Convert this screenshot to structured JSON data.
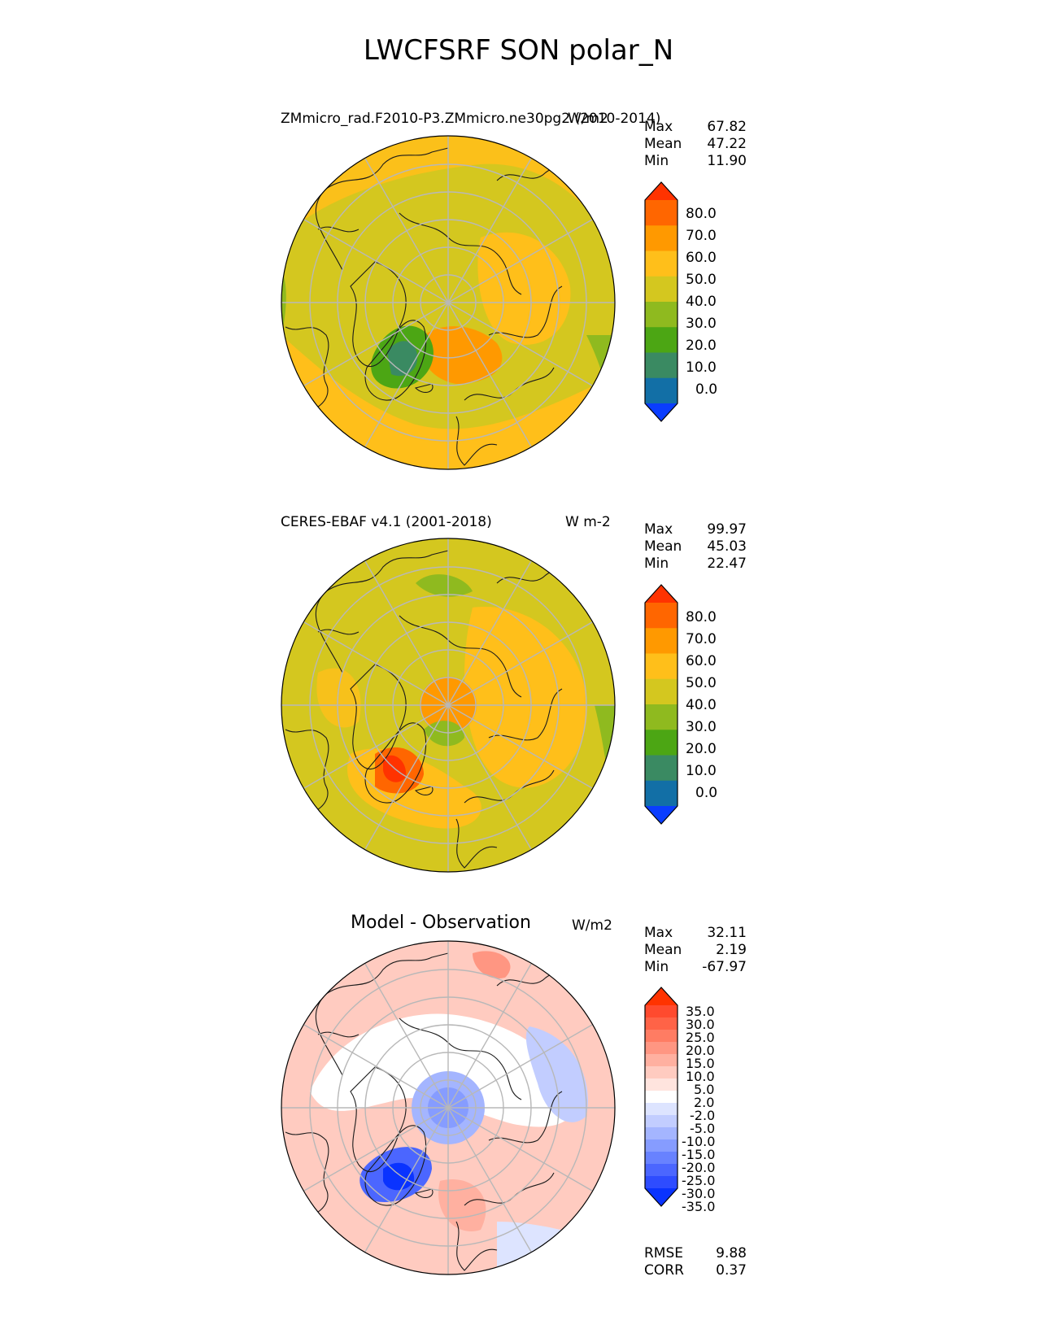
{
  "title": "LWCFSRF SON polar_N",
  "panels": [
    {
      "label": "ZMmicro_rad.F2010-P3.ZMmicro.ne30pg2 (2010-2014)",
      "units": "W/m2",
      "stats": [
        {
          "name": "Max",
          "value": "67.82"
        },
        {
          "name": "Mean",
          "value": "47.22"
        },
        {
          "name": "Min",
          "value": "11.90"
        }
      ],
      "colorbar": {
        "tick_labels": [
          "80.0",
          "70.0",
          "60.0",
          "50.0",
          "40.0",
          "30.0",
          "20.0",
          "10.0",
          "0.0"
        ],
        "colors": [
          "#ff3300",
          "#ff6600",
          "#ff9900",
          "#ffbf1a",
          "#d4c71f",
          "#8fba1f",
          "#4ca614",
          "#3a8a62",
          "#126fa6",
          "#0a3dff"
        ]
      }
    },
    {
      "label": "CERES-EBAF v4.1 (2001-2018)",
      "units": "W m-2",
      "stats": [
        {
          "name": "Max",
          "value": "99.97"
        },
        {
          "name": "Mean",
          "value": "45.03"
        },
        {
          "name": "Min",
          "value": "22.47"
        }
      ],
      "colorbar": {
        "tick_labels": [
          "80.0",
          "70.0",
          "60.0",
          "50.0",
          "40.0",
          "30.0",
          "20.0",
          "10.0",
          "0.0"
        ],
        "colors": [
          "#ff3300",
          "#ff6600",
          "#ff9900",
          "#ffbf1a",
          "#d4c71f",
          "#8fba1f",
          "#4ca614",
          "#3a8a62",
          "#126fa6",
          "#0a3dff"
        ]
      }
    },
    {
      "label": "Model - Observation",
      "units": "W/m2",
      "stats": [
        {
          "name": "Max",
          "value": "32.11"
        },
        {
          "name": "Mean",
          "value": "2.19"
        },
        {
          "name": "Min",
          "value": "-67.97"
        }
      ],
      "colorbar": {
        "tick_labels": [
          "35.0",
          "30.0",
          "25.0",
          "20.0",
          "15.0",
          "10.0",
          "5.0",
          "2.0",
          "-2.0",
          "-5.0",
          "-10.0",
          "-15.0",
          "-20.0",
          "-25.0",
          "-30.0",
          "-35.0"
        ],
        "colors": [
          "#ff3300",
          "#ff4a2e",
          "#ff6347",
          "#ff7c63",
          "#ff9682",
          "#ffb0a0",
          "#ffcbc0",
          "#ffe4de",
          "#ffffff",
          "#dde4ff",
          "#c2cdff",
          "#a4b5ff",
          "#869cff",
          "#6882ff",
          "#4b66ff",
          "#2e4cff",
          "#0a33ff"
        ]
      },
      "metrics": [
        {
          "name": "RMSE",
          "value": "9.88"
        },
        {
          "name": "CORR",
          "value": "0.37"
        }
      ]
    }
  ]
}
